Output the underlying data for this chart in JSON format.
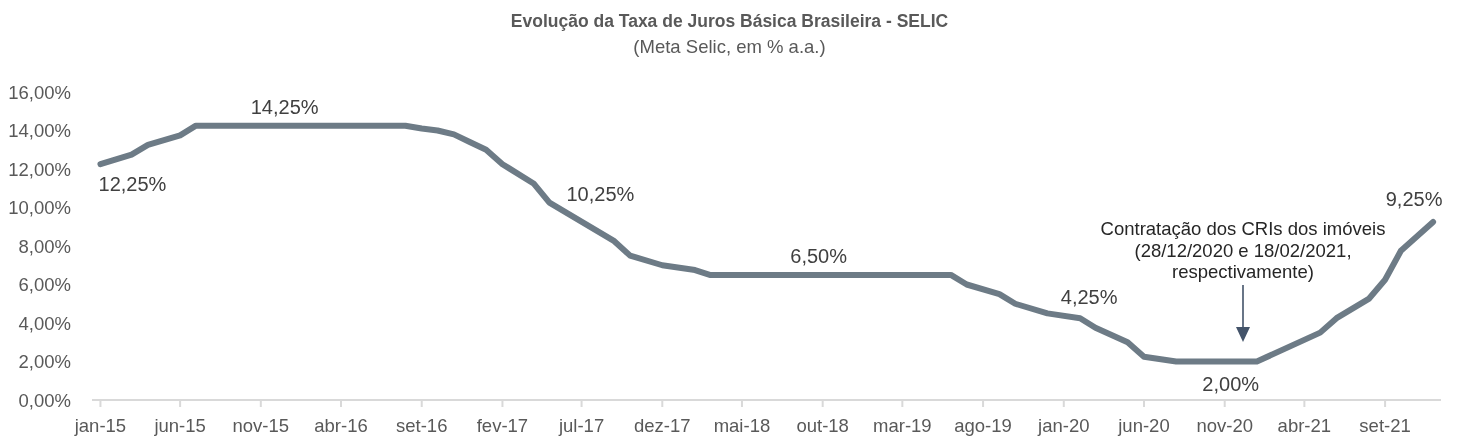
{
  "chart_data": {
    "type": "line",
    "title": "Evolução da Taxa de Juros Básica Brasileira - SELIC",
    "subtitle": "(Meta Selic, em % a.a.)",
    "x": [
      "2015-01",
      "2015-03",
      "2015-04",
      "2015-06",
      "2015-07",
      "2016-08",
      "2016-09",
      "2016-10",
      "2016-11",
      "2016-12",
      "2017-01",
      "2017-02",
      "2017-04",
      "2017-05",
      "2017-09",
      "2017-10",
      "2017-12",
      "2018-02",
      "2018-03",
      "2019-06",
      "2019-07",
      "2019-09",
      "2019-10",
      "2019-12",
      "2020-02",
      "2020-03",
      "2020-05",
      "2020-06",
      "2020-08",
      "2021-01",
      "2021-05",
      "2021-06",
      "2021-08",
      "2021-09",
      "2021-10",
      "2021-12"
    ],
    "values": [
      12.25,
      12.75,
      13.25,
      13.75,
      14.25,
      14.25,
      14.1,
      14.0,
      13.8,
      13.4,
      13.0,
      12.25,
      11.25,
      10.25,
      8.25,
      7.5,
      7.0,
      6.75,
      6.5,
      6.5,
      6.0,
      5.5,
      5.0,
      4.5,
      4.25,
      3.75,
      3.0,
      2.25,
      2.0,
      2.0,
      3.5,
      4.25,
      5.25,
      6.25,
      7.75,
      9.25
    ],
    "color": "#6d7b86",
    "xlim": [
      "2014-12-16",
      "2021-12-16"
    ],
    "xticks": [
      {
        "value": "2015-01",
        "label": "jan-15"
      },
      {
        "value": "2015-06",
        "label": "jun-15"
      },
      {
        "value": "2015-11",
        "label": "nov-15"
      },
      {
        "value": "2016-04",
        "label": "abr-16"
      },
      {
        "value": "2016-09",
        "label": "set-16"
      },
      {
        "value": "2017-02",
        "label": "fev-17"
      },
      {
        "value": "2017-07",
        "label": "jul-17"
      },
      {
        "value": "2017-12",
        "label": "dez-17"
      },
      {
        "value": "2018-05",
        "label": "mai-18"
      },
      {
        "value": "2018-10",
        "label": "out-18"
      },
      {
        "value": "2019-03",
        "label": "mar-19"
      },
      {
        "value": "2019-08",
        "label": "ago-19"
      },
      {
        "value": "2020-01",
        "label": "jan-20"
      },
      {
        "value": "2020-06",
        "label": "jun-20"
      },
      {
        "value": "2020-11",
        "label": "nov-20"
      },
      {
        "value": "2021-04",
        "label": "abr-21"
      },
      {
        "value": "2021-09",
        "label": "set-21"
      }
    ],
    "ylim": [
      0,
      16
    ],
    "yticks": [
      {
        "value": 0,
        "label": "0,00%"
      },
      {
        "value": 2,
        "label": "2,00%"
      },
      {
        "value": 4,
        "label": "4,00%"
      },
      {
        "value": 6,
        "label": "6,00%"
      },
      {
        "value": 8,
        "label": "8,00%"
      },
      {
        "value": 10,
        "label": "10,00%"
      },
      {
        "value": 12,
        "label": "12,00%"
      },
      {
        "value": 14,
        "label": "14,00%"
      },
      {
        "value": 16,
        "label": "16,00%"
      }
    ],
    "annotations": [
      {
        "text": "12,25%",
        "x": "2015-01",
        "y": 12.25
      },
      {
        "text": "14,25%",
        "x": "2015-12",
        "y": 14.25
      },
      {
        "text": "10,25%",
        "x": "2017-05",
        "y": 10.25
      },
      {
        "text": "6,50%",
        "x": "2018-10",
        "y": 6.5
      },
      {
        "text": "4,25%",
        "x": "2020-02",
        "y": 4.25
      },
      {
        "text": "2,00%",
        "x": "2020-11",
        "y": 2.0
      },
      {
        "text": "9,25%",
        "x": "2021-12",
        "y": 9.25
      },
      "Contratação dos CRIs dos imóveis (28/12/2020 e 18/02/2021, respectivamente)"
    ]
  }
}
